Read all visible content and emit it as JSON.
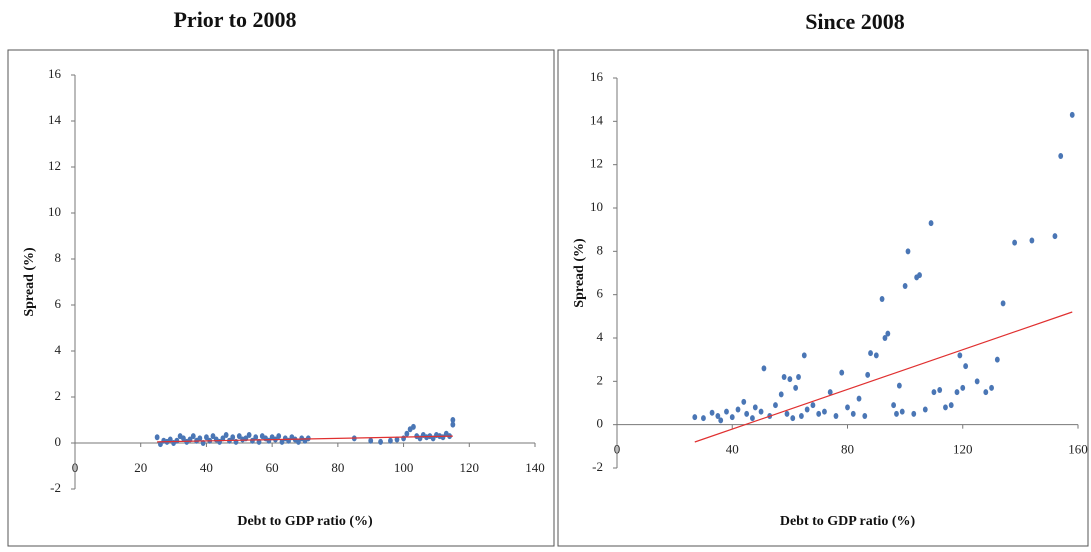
{
  "chart_data": [
    {
      "type": "scatter",
      "title": "Prior to 2008",
      "xlabel": "Debt to GDP ratio (%)",
      "ylabel": "Spread (%)",
      "xlim": [
        0,
        140
      ],
      "xticks": [
        0,
        20,
        40,
        60,
        80,
        100,
        120,
        140
      ],
      "ylim": [
        -2,
        16
      ],
      "yticks": [
        -2,
        0,
        2,
        4,
        6,
        8,
        10,
        12,
        14,
        16
      ],
      "color": "#4a76b5",
      "x": [
        25,
        26,
        27,
        28,
        29,
        30,
        31,
        32,
        33,
        34,
        35,
        36,
        37,
        38,
        39,
        40,
        41,
        42,
        43,
        44,
        45,
        46,
        47,
        48,
        49,
        50,
        51,
        52,
        53,
        54,
        55,
        56,
        57,
        58,
        59,
        60,
        61,
        62,
        63,
        64,
        65,
        66,
        67,
        68,
        69,
        70,
        71,
        85,
        90,
        93,
        96,
        98,
        100,
        101,
        102,
        103,
        104,
        105,
        106,
        107,
        108,
        109,
        110,
        111,
        112,
        113,
        114,
        115,
        115
      ],
      "y": [
        0.25,
        -0.05,
        0.1,
        0.05,
        0.15,
        0.0,
        0.1,
        0.3,
        0.2,
        0.05,
        0.15,
        0.3,
        0.1,
        0.2,
        0.0,
        0.25,
        0.1,
        0.3,
        0.15,
        0.05,
        0.2,
        0.35,
        0.1,
        0.25,
        0.05,
        0.3,
        0.15,
        0.2,
        0.35,
        0.1,
        0.25,
        0.05,
        0.3,
        0.2,
        0.1,
        0.25,
        0.15,
        0.3,
        0.05,
        0.2,
        0.1,
        0.25,
        0.15,
        0.05,
        0.2,
        0.1,
        0.2,
        0.2,
        0.1,
        0.05,
        0.1,
        0.15,
        0.2,
        0.4,
        0.6,
        0.7,
        0.3,
        0.2,
        0.35,
        0.25,
        0.3,
        0.2,
        0.35,
        0.3,
        0.25,
        0.4,
        0.3,
        1.0,
        0.8
      ],
      "trend_x": [
        25,
        115
      ],
      "trend_y": [
        0.05,
        0.3
      ],
      "trend_color": "#e03030"
    },
    {
      "type": "scatter",
      "title": "Since 2008",
      "xlabel": "Debt to GDP ratio (%)",
      "ylabel": "Spread (%)",
      "xlim": [
        0,
        160
      ],
      "xticks": [
        0,
        40,
        80,
        120,
        160
      ],
      "ylim": [
        -2,
        16
      ],
      "yticks": [
        -2,
        0,
        2,
        4,
        6,
        8,
        10,
        12,
        14,
        16
      ],
      "color": "#4a76b5",
      "x": [
        27,
        30,
        33,
        35,
        36,
        38,
        40,
        42,
        44,
        45,
        47,
        48,
        50,
        51,
        53,
        55,
        57,
        58,
        59,
        60,
        61,
        62,
        63,
        64,
        65,
        66,
        68,
        70,
        72,
        74,
        76,
        78,
        80,
        82,
        84,
        86,
        87,
        88,
        90,
        92,
        93,
        94,
        96,
        97,
        98,
        99,
        100,
        101,
        103,
        104,
        105,
        107,
        109,
        110,
        112,
        114,
        116,
        118,
        119,
        120,
        121,
        125,
        128,
        130,
        132,
        134,
        138,
        144,
        152,
        154,
        158
      ],
      "y": [
        0.35,
        0.3,
        0.55,
        0.4,
        0.2,
        0.6,
        0.35,
        0.7,
        1.05,
        0.5,
        0.3,
        0.8,
        0.6,
        2.6,
        0.4,
        0.9,
        1.4,
        2.2,
        0.5,
        2.1,
        0.3,
        1.7,
        2.2,
        0.4,
        3.2,
        0.7,
        0.9,
        0.5,
        0.6,
        1.5,
        0.4,
        2.4,
        0.8,
        0.5,
        1.2,
        0.4,
        2.3,
        3.3,
        3.2,
        5.8,
        4.0,
        4.2,
        0.9,
        0.5,
        1.8,
        0.6,
        6.4,
        8.0,
        0.5,
        6.8,
        6.9,
        0.7,
        9.3,
        1.5,
        1.6,
        0.8,
        0.9,
        1.5,
        3.2,
        1.7,
        2.7,
        2.0,
        1.5,
        1.7,
        3.0,
        5.6,
        8.4,
        8.5,
        8.7,
        12.4,
        14.3
      ],
      "trend_x": [
        27,
        158
      ],
      "trend_y": [
        -0.8,
        5.2
      ],
      "trend_color": "#e03030"
    }
  ]
}
